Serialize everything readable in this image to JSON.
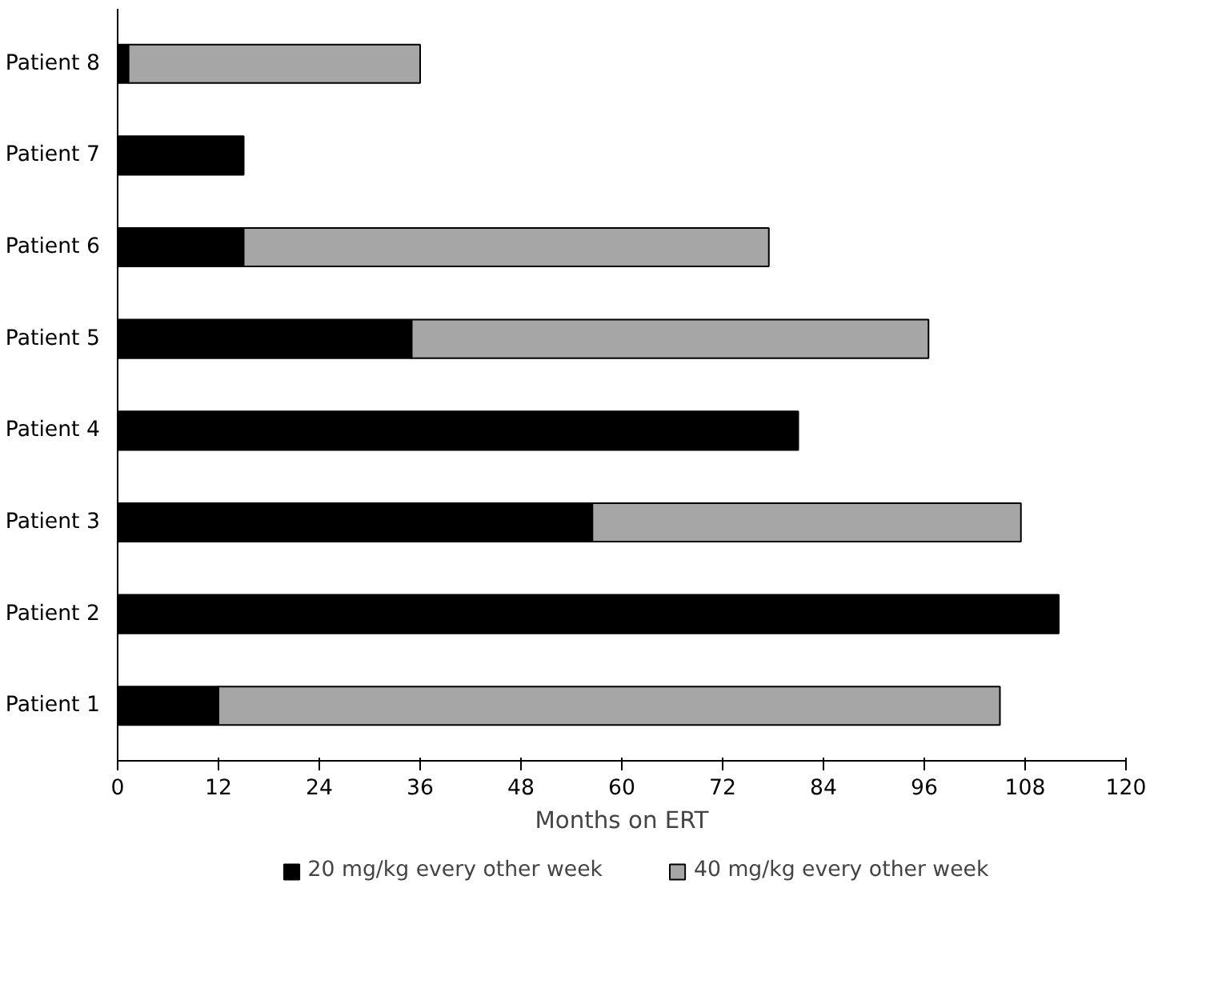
{
  "chart_data": {
    "type": "bar",
    "orientation": "horizontal",
    "stacked": true,
    "xlabel": "Months on ERT",
    "categories": [
      "Patient 8",
      "Patient 7",
      "Patient 6",
      "Patient 5",
      "Patient 4",
      "Patient 3",
      "Patient 2",
      "Patient 1"
    ],
    "series": [
      {
        "name": "20 mg/kg every other week",
        "color": "#000000",
        "values": [
          1.3,
          15,
          15,
          35,
          81,
          56.5,
          112,
          12
        ]
      },
      {
        "name": "40 mg/kg every other week",
        "color": "#a6a6a6",
        "values": [
          34.7,
          null,
          62.5,
          61.5,
          null,
          51,
          null,
          93
        ]
      }
    ],
    "xlim": [
      0,
      120
    ],
    "xticks": [
      0,
      12,
      24,
      36,
      48,
      60,
      72,
      84,
      96,
      108,
      120
    ],
    "grid": false,
    "legend": "bottom"
  }
}
